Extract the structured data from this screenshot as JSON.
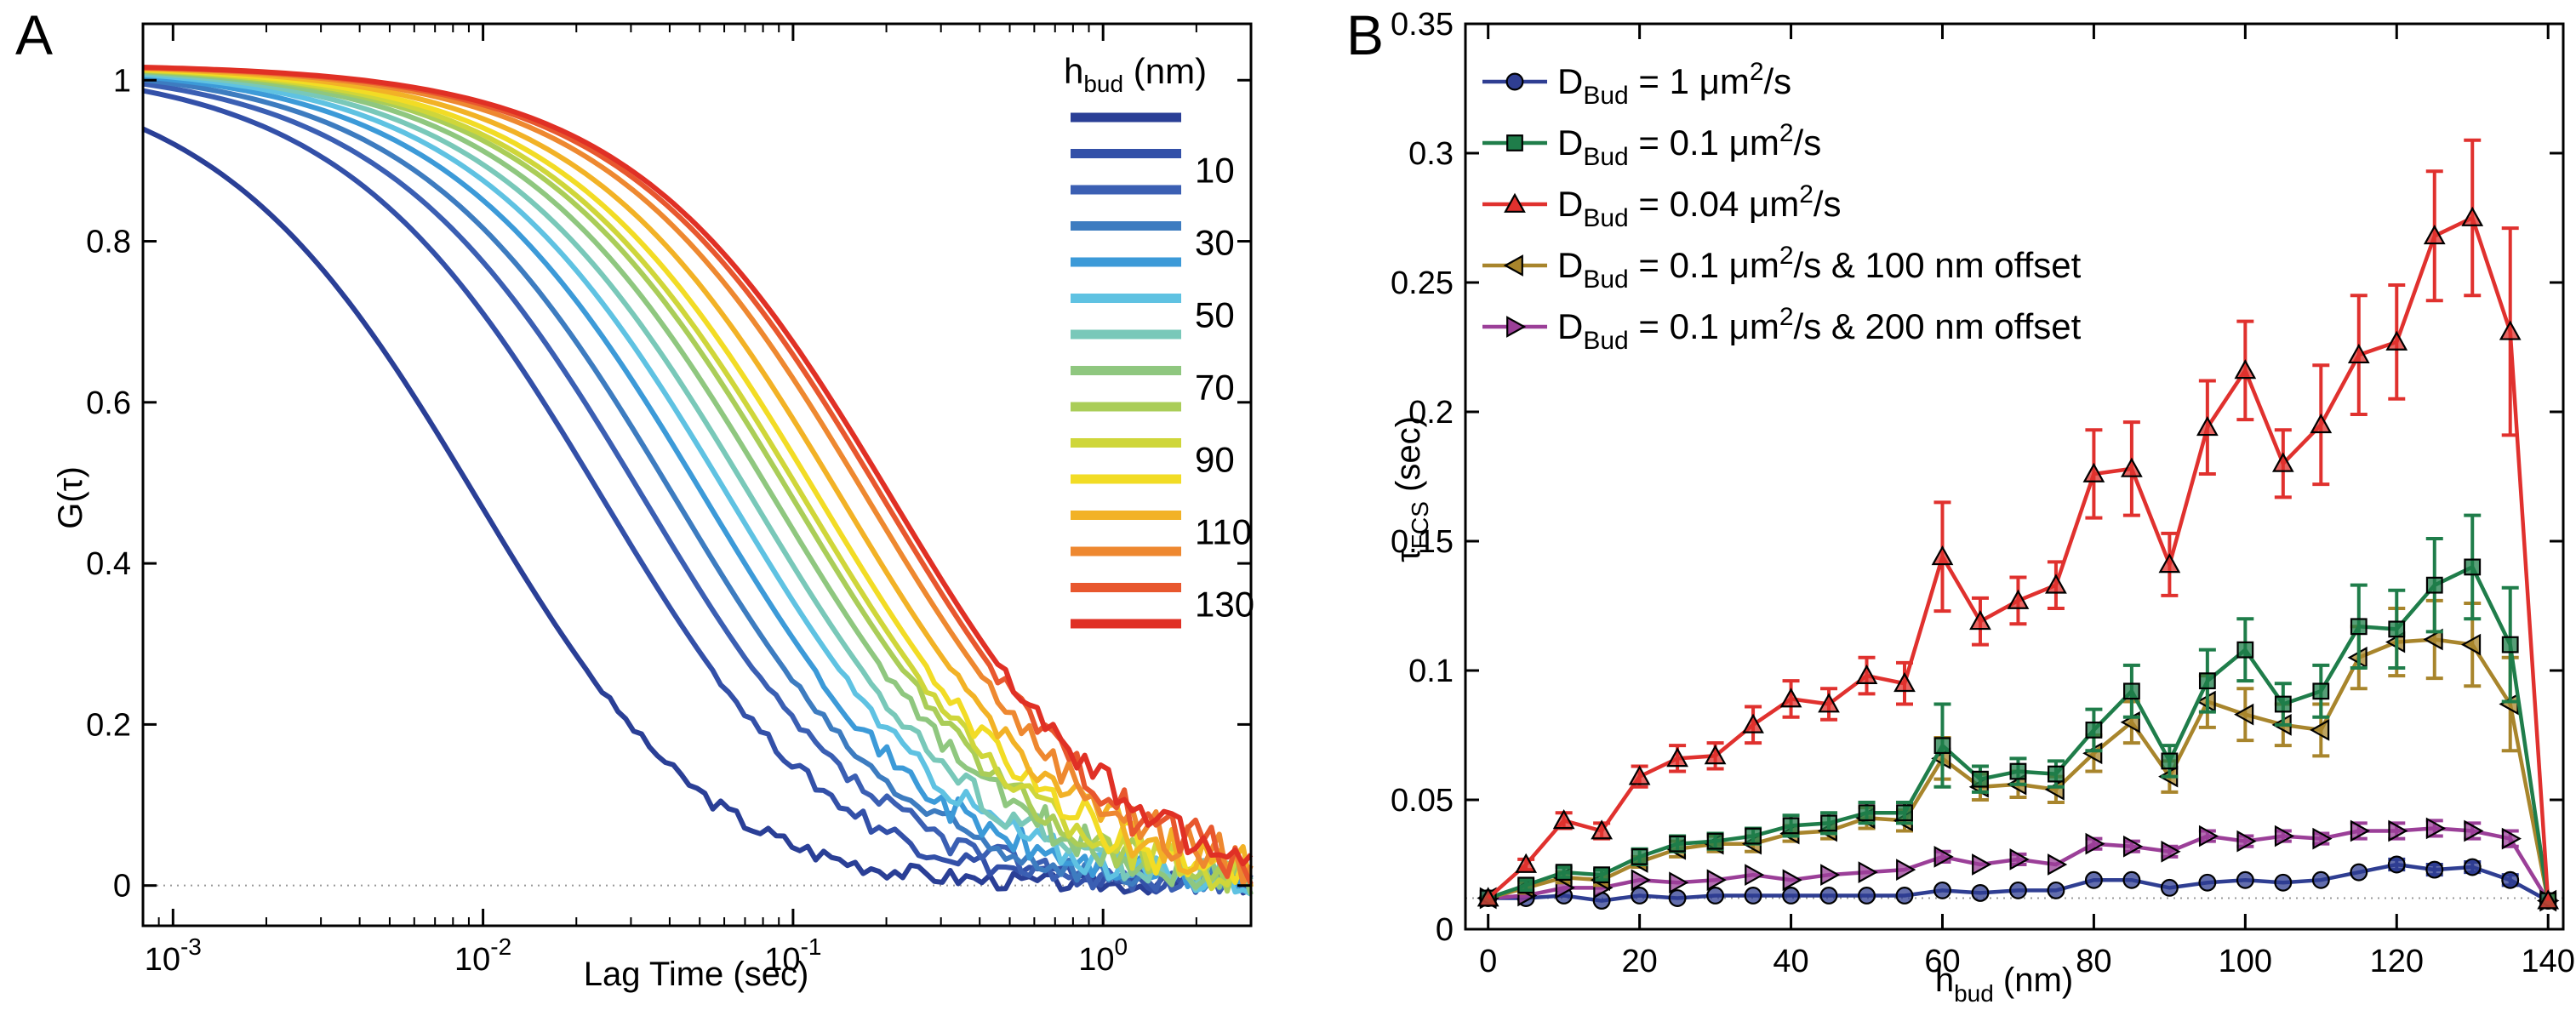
{
  "chart_data": [
    {
      "panel_label": "A",
      "type": "line",
      "xscale": "log",
      "xlabel": "Lag Time (sec)",
      "ylabel": "G(τ)",
      "xlim": [
        0.0008,
        3.0
      ],
      "ylim": [
        -0.05,
        1.07
      ],
      "xticks": [
        {
          "value": 0.001,
          "base": "10",
          "exp": "-3"
        },
        {
          "value": 0.01,
          "base": "10",
          "exp": "-2"
        },
        {
          "value": 0.1,
          "base": "10",
          "exp": "-1"
        },
        {
          "value": 1,
          "base": "10",
          "exp": "0"
        }
      ],
      "yticks": [
        0,
        0.2,
        0.4,
        0.6,
        0.8,
        1
      ],
      "legend": {
        "title": "h",
        "title_sub": "bud",
        "title_unit": " (nm)",
        "position": "top-right"
      },
      "series": [
        {
          "h": 0,
          "label": "",
          "color": "#2a3f96",
          "tau": 0.011,
          "endnoise": 0.01
        },
        {
          "h": 10,
          "label": "10",
          "color": "#3350a8",
          "tau": 0.028,
          "endnoise": 0.012
        },
        {
          "h": 20,
          "label": "",
          "color": "#3b5fb3",
          "tau": 0.038,
          "endnoise": 0.015
        },
        {
          "h": 30,
          "label": "30",
          "color": "#3d7cc0",
          "tau": 0.048,
          "endnoise": 0.015
        },
        {
          "h": 40,
          "label": "",
          "color": "#3c9ad8",
          "tau": 0.06,
          "endnoise": 0.018
        },
        {
          "h": 50,
          "label": "50",
          "color": "#5fc2e2",
          "tau": 0.072,
          "endnoise": 0.018
        },
        {
          "h": 60,
          "label": "",
          "color": "#79c8b9",
          "tau": 0.085,
          "endnoise": 0.02
        },
        {
          "h": 70,
          "label": "70",
          "color": "#8fc77f",
          "tau": 0.1,
          "endnoise": 0.02
        },
        {
          "h": 80,
          "label": "",
          "color": "#aacd58",
          "tau": 0.115,
          "endnoise": 0.022
        },
        {
          "h": 90,
          "label": "90",
          "color": "#cfd63a",
          "tau": 0.125,
          "endnoise": 0.022
        },
        {
          "h": 100,
          "label": "",
          "color": "#f2dc25",
          "tau": 0.14,
          "endnoise": 0.025
        },
        {
          "h": 110,
          "label": "110",
          "color": "#f2b226",
          "tau": 0.165,
          "endnoise": 0.025
        },
        {
          "h": 120,
          "label": "",
          "color": "#ee8830",
          "tau": 0.2,
          "endnoise": 0.028
        },
        {
          "h": 130,
          "label": "130",
          "color": "#e8572e",
          "tau": 0.225,
          "endnoise": 0.03
        },
        {
          "h": 140,
          "label": "",
          "color": "#e03025",
          "tau": 0.24,
          "endnoise": 0.03
        }
      ]
    },
    {
      "panel_label": "B",
      "type": "line",
      "xlabel": "h",
      "xlabel_sub": "bud",
      "xlabel_unit": " (nm)",
      "ylabel": "τ",
      "ylabel_sub": "FCS",
      "ylabel_unit": "  (sec)",
      "xlim": [
        -3,
        142
      ],
      "ylim": [
        0,
        0.35
      ],
      "xticks": [
        0,
        20,
        40,
        60,
        80,
        100,
        120,
        140
      ],
      "yticks": [
        0,
        0.05,
        0.1,
        0.15,
        0.2,
        0.25,
        0.3,
        0.35
      ],
      "x": [
        0,
        5,
        10,
        15,
        20,
        25,
        30,
        35,
        40,
        45,
        50,
        55,
        60,
        65,
        70,
        75,
        80,
        85,
        90,
        95,
        100,
        105,
        110,
        115,
        120,
        125,
        130,
        135,
        140
      ],
      "series": [
        {
          "legend_pre": "D",
          "legend_sub": "Bud",
          "legend_mid": " = 1  μm",
          "legend_sup": "2",
          "legend_post": "/s",
          "color": "#2f3e92",
          "marker": "circle",
          "values": [
            0.012,
            0.012,
            0.013,
            0.011,
            0.013,
            0.012,
            0.013,
            0.013,
            0.013,
            0.013,
            0.013,
            0.013,
            0.015,
            0.014,
            0.015,
            0.015,
            0.019,
            0.019,
            0.016,
            0.018,
            0.019,
            0.018,
            0.019,
            0.022,
            0.025,
            0.023,
            0.024,
            0.019,
            0.011
          ],
          "errors": [
            0.001,
            0.001,
            0.001,
            0.001,
            0.001,
            0.001,
            0.001,
            0.001,
            0.001,
            0.001,
            0.001,
            0.001,
            0.001,
            0.001,
            0.001,
            0.001,
            0.001,
            0.001,
            0.001,
            0.001,
            0.001,
            0.001,
            0.001,
            0.001,
            0.002,
            0.002,
            0.002,
            0.002,
            0.001
          ]
        },
        {
          "legend_pre": "D",
          "legend_sub": "Bud",
          "legend_mid": " = 0.1  μm",
          "legend_sup": "2",
          "legend_post": "/s",
          "color": "#1f7d4a",
          "marker": "square",
          "values": [
            0.012,
            0.017,
            0.022,
            0.021,
            0.028,
            0.033,
            0.034,
            0.036,
            0.04,
            0.041,
            0.045,
            0.045,
            0.071,
            0.058,
            0.061,
            0.06,
            0.077,
            0.092,
            0.065,
            0.096,
            0.108,
            0.087,
            0.092,
            0.117,
            0.116,
            0.133,
            0.14,
            0.11,
            0.011
          ],
          "errors": [
            0.001,
            0.002,
            0.002,
            0.002,
            0.003,
            0.003,
            0.003,
            0.003,
            0.004,
            0.004,
            0.004,
            0.004,
            0.016,
            0.005,
            0.005,
            0.005,
            0.008,
            0.01,
            0.006,
            0.012,
            0.012,
            0.008,
            0.01,
            0.016,
            0.015,
            0.018,
            0.02,
            0.022,
            0.001
          ]
        },
        {
          "legend_pre": "D",
          "legend_sub": "Bud",
          "legend_mid": " = 0.04  μm",
          "legend_sup": "2",
          "legend_post": "/s",
          "color": "#e0312e",
          "marker": "triangle-up",
          "values": [
            0.012,
            0.025,
            0.042,
            0.038,
            0.059,
            0.066,
            0.067,
            0.079,
            0.089,
            0.087,
            0.098,
            0.095,
            0.144,
            0.119,
            0.127,
            0.133,
            0.176,
            0.178,
            0.141,
            0.194,
            0.216,
            0.18,
            0.195,
            0.222,
            0.227,
            0.268,
            0.275,
            0.231,
            0.011
          ],
          "errors": [
            0.001,
            0.002,
            0.003,
            0.003,
            0.004,
            0.005,
            0.005,
            0.007,
            0.007,
            0.006,
            0.007,
            0.008,
            0.021,
            0.009,
            0.009,
            0.009,
            0.017,
            0.018,
            0.012,
            0.018,
            0.019,
            0.013,
            0.023,
            0.023,
            0.022,
            0.025,
            0.03,
            0.04,
            0.001
          ]
        },
        {
          "legend_pre": "D",
          "legend_sub": "Bud",
          "legend_mid": " = 0.1  μm",
          "legend_sup": "2",
          "legend_post": "/s & 100 nm offset",
          "color": "#a8852c",
          "marker": "triangle-left",
          "values": [
            0.012,
            0.016,
            0.02,
            0.019,
            0.026,
            0.031,
            0.033,
            0.033,
            0.037,
            0.038,
            0.043,
            0.042,
            0.066,
            0.055,
            0.056,
            0.054,
            0.068,
            0.08,
            0.059,
            0.088,
            0.083,
            0.079,
            0.077,
            0.105,
            0.111,
            0.112,
            0.11,
            0.087,
            0.011
          ],
          "errors": [
            0.001,
            0.002,
            0.002,
            0.002,
            0.002,
            0.003,
            0.003,
            0.003,
            0.003,
            0.003,
            0.004,
            0.004,
            0.008,
            0.005,
            0.005,
            0.005,
            0.007,
            0.008,
            0.006,
            0.01,
            0.01,
            0.008,
            0.01,
            0.012,
            0.013,
            0.015,
            0.016,
            0.018,
            0.001
          ]
        },
        {
          "legend_pre": "D",
          "legend_sub": "Bud",
          "legend_mid": " = 0.1  μm",
          "legend_sup": "2",
          "legend_post": "/s & 200 nm offset",
          "color": "#9b3f98",
          "marker": "triangle-right",
          "values": [
            0.012,
            0.013,
            0.016,
            0.016,
            0.019,
            0.018,
            0.019,
            0.021,
            0.019,
            0.021,
            0.022,
            0.023,
            0.028,
            0.025,
            0.027,
            0.025,
            0.033,
            0.032,
            0.03,
            0.036,
            0.034,
            0.036,
            0.035,
            0.038,
            0.038,
            0.039,
            0.038,
            0.035,
            0.011
          ],
          "errors": [
            0.001,
            0.001,
            0.001,
            0.001,
            0.001,
            0.001,
            0.001,
            0.001,
            0.001,
            0.001,
            0.001,
            0.001,
            0.002,
            0.001,
            0.002,
            0.001,
            0.002,
            0.002,
            0.002,
            0.002,
            0.002,
            0.002,
            0.002,
            0.003,
            0.003,
            0.003,
            0.003,
            0.003,
            0.001
          ]
        }
      ]
    }
  ]
}
